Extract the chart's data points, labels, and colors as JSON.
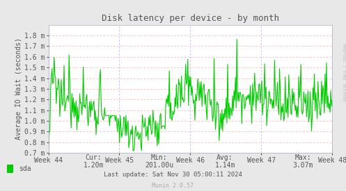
{
  "title": "Disk latency per device - by month",
  "ylabel": "Average IO Wait (seconds)",
  "bg_color": "#e8e8e8",
  "plot_bg_color": "#ffffff",
  "grid_color_h": "#ffaaaa",
  "grid_color_v": "#aaaaff",
  "line_color": "#00cc00",
  "ylim_min": 0.0007,
  "ylim_max": 0.0019,
  "yticks": [
    0.0007,
    0.0008,
    0.0009,
    0.001,
    0.0011,
    0.0012,
    0.0013,
    0.0014,
    0.0015,
    0.0016,
    0.0017,
    0.0018
  ],
  "ytick_labels": [
    "0.7 m",
    "0.8 m",
    "0.9 m",
    "1.0 m",
    "1.1 m",
    "1.2 m",
    "1.3 m",
    "1.4 m",
    "1.5 m",
    "1.6 m",
    "1.7 m",
    "1.8 m"
  ],
  "xtick_labels": [
    "Week 44",
    "Week 45",
    "Week 46",
    "Week 47",
    "Week 48"
  ],
  "legend_label": "sda",
  "legend_color": "#00cc00",
  "cur_val": "1.20m",
  "min_val": "201.00u",
  "avg_val": "1.14m",
  "max_val": "3.07m",
  "last_update": "Last update: Sat Nov 30 05:00:11 2024",
  "munin_version": "Munin 2.0.57",
  "rrdtool_text": "RRDTOOL / TOBI OETIKER",
  "text_color": "#555555",
  "font_family": "DejaVu Sans Mono",
  "num_points": 400
}
